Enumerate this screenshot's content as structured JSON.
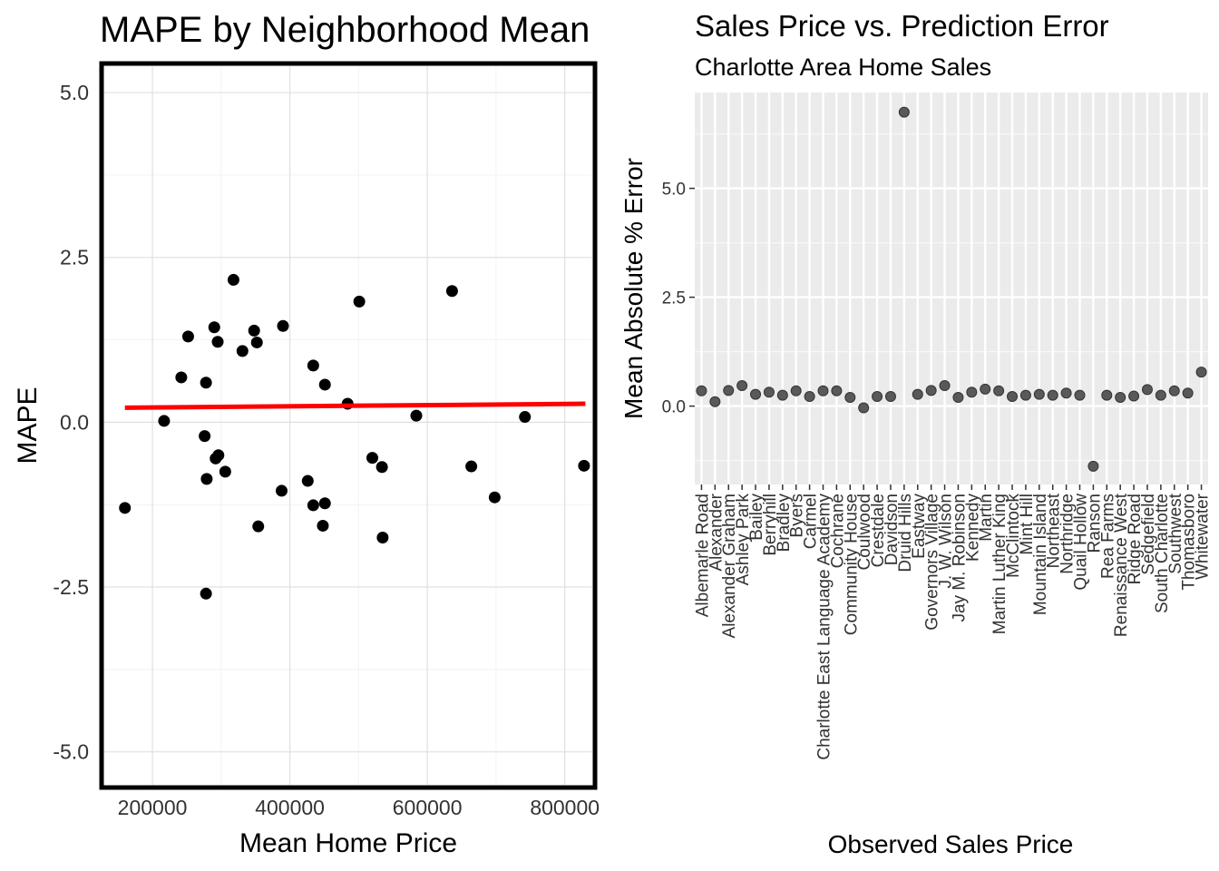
{
  "chart_data": [
    {
      "type": "scatter",
      "title": "MAPE by Neighborhood Mean",
      "xlabel": "Mean Home Price",
      "ylabel": "MAPE",
      "xlim": [
        130000,
        840000
      ],
      "ylim": [
        -5.5,
        5.4
      ],
      "xticks": [
        200000,
        400000,
        600000,
        800000
      ],
      "xtick_labels": [
        "200000",
        "400000",
        "600000",
        "800000"
      ],
      "yticks": [
        5.0,
        2.5,
        0.0,
        -2.5,
        -5.0
      ],
      "ytick_labels": [
        "5.0",
        "2.5",
        "0.0",
        "-2.5",
        "-5.0"
      ],
      "grid": true,
      "border_color": "#000000",
      "point_color": "#000000",
      "trend_color": "#ff0000",
      "trend_line": [
        [
          160000,
          0.22
        ],
        [
          830000,
          0.28
        ]
      ],
      "points": [
        [
          160000,
          -1.3
        ],
        [
          217000,
          0.02
        ],
        [
          242000,
          0.68
        ],
        [
          252000,
          1.3
        ],
        [
          276000,
          -0.21
        ],
        [
          278000,
          0.6
        ],
        [
          279000,
          -0.86
        ],
        [
          278000,
          -2.6
        ],
        [
          290000,
          1.44
        ],
        [
          292000,
          -0.55
        ],
        [
          295000,
          1.22
        ],
        [
          296000,
          -0.5
        ],
        [
          306000,
          -0.75
        ],
        [
          318000,
          2.16
        ],
        [
          331000,
          1.08
        ],
        [
          348000,
          1.39
        ],
        [
          352000,
          1.21
        ],
        [
          354000,
          -1.58
        ],
        [
          388000,
          -1.04
        ],
        [
          390000,
          1.46
        ],
        [
          426000,
          -0.89
        ],
        [
          434000,
          0.86
        ],
        [
          434000,
          -1.26
        ],
        [
          448000,
          -1.57
        ],
        [
          451000,
          -1.23
        ],
        [
          451000,
          0.57
        ],
        [
          484000,
          0.28
        ],
        [
          501000,
          1.83
        ],
        [
          520000,
          -0.54
        ],
        [
          534000,
          -0.68
        ],
        [
          535000,
          -1.75
        ],
        [
          584000,
          0.1
        ],
        [
          636000,
          1.99
        ],
        [
          664000,
          -0.67
        ],
        [
          698000,
          -1.14
        ],
        [
          742000,
          0.08
        ],
        [
          828000,
          -0.66
        ]
      ]
    },
    {
      "type": "scatter",
      "title": "Sales Price vs. Prediction Error",
      "subtitle": "Charlotte Area Home Sales",
      "xlabel": "Observed Sales Price",
      "ylabel": "Mean Absolute % Error",
      "ylim": [
        -1.8,
        7.2
      ],
      "yticks": [
        5.0,
        2.5,
        0.0
      ],
      "ytick_labels": [
        "5.0",
        "2.5",
        "0.0"
      ],
      "grid": true,
      "panel_color": "#ebebeb",
      "point_color": "#595959",
      "categories": [
        "Albemarle Road",
        "Alexander",
        "Alexander Graham",
        "Ashley Park",
        "Bailey",
        "Berryhill",
        "Bradley",
        "Byers",
        "Carmel",
        "Charlotte East Language Academy",
        "Cochrane",
        "Community House",
        "Coulwood",
        "Crestdale",
        "Davidson",
        "Druid Hills",
        "Eastway",
        "Governors Village",
        "J. W. Wilson",
        "Jay M. Robinson",
        "Kennedy",
        "Martin",
        "Martin Luther King",
        "McClintock",
        "Mint Hill",
        "Mountain Island",
        "Northeast",
        "Northridge",
        "Quail Hollow",
        "Ranson",
        "Rea Farms",
        "Renaissance West",
        "Ridge Road",
        "Sedgefield",
        "South Charlotte",
        "Southwest",
        "Thomasboro",
        "Whitewater"
      ],
      "values": [
        0.35,
        0.1,
        0.36,
        0.47,
        0.27,
        0.32,
        0.25,
        0.35,
        0.22,
        0.35,
        0.35,
        0.2,
        -0.04,
        0.22,
        0.22,
        6.75,
        0.27,
        0.36,
        0.47,
        0.2,
        0.32,
        0.39,
        0.35,
        0.22,
        0.25,
        0.27,
        0.25,
        0.3,
        0.25,
        -1.38,
        0.25,
        0.2,
        0.23,
        0.38,
        0.25,
        0.35,
        0.3,
        0.78
      ]
    }
  ]
}
